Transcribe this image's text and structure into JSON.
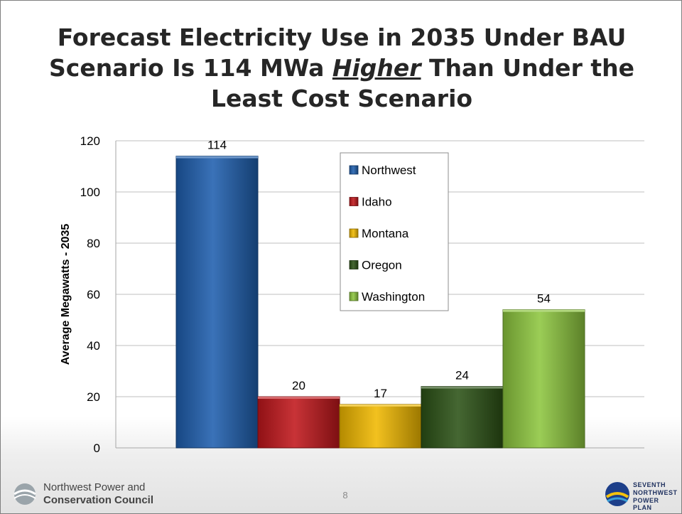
{
  "slide": {
    "title_part1": "Forecast Electricity Use in 2035 Under BAU Scenario Is 114 MWa ",
    "title_emphasis": "Higher",
    "title_part2": " Than Under the Least Cost Scenario",
    "page_number": "8",
    "footer_left_line1": "Northwest Power and",
    "footer_left_line2": "Conservation Council",
    "footer_right_line1": "SEVENTH",
    "footer_right_line2": "NORTHWEST",
    "footer_right_line3": "POWER PLAN"
  },
  "chart_data": {
    "type": "bar",
    "title": "Forecast Electricity Use in 2035 Under BAU Scenario Is 114 MWa Higher Than Under the Least Cost Scenario",
    "xlabel": "",
    "ylabel": "Average Megawatts - 2035",
    "ylim": [
      0,
      120
    ],
    "yticks": [
      0,
      20,
      40,
      60,
      80,
      100,
      120
    ],
    "grid": true,
    "legend_position": "center",
    "series": [
      {
        "name": "Northwest",
        "values": [
          114
        ],
        "color": "#1f5fae"
      },
      {
        "name": "Idaho",
        "values": [
          20
        ],
        "color": "#c0171c"
      },
      {
        "name": "Montana",
        "values": [
          17
        ],
        "color": "#f0b800"
      },
      {
        "name": "Oregon",
        "values": [
          24
        ],
        "color": "#2c5216"
      },
      {
        "name": "Washington",
        "values": [
          54
        ],
        "color": "#8dc63f"
      }
    ]
  }
}
